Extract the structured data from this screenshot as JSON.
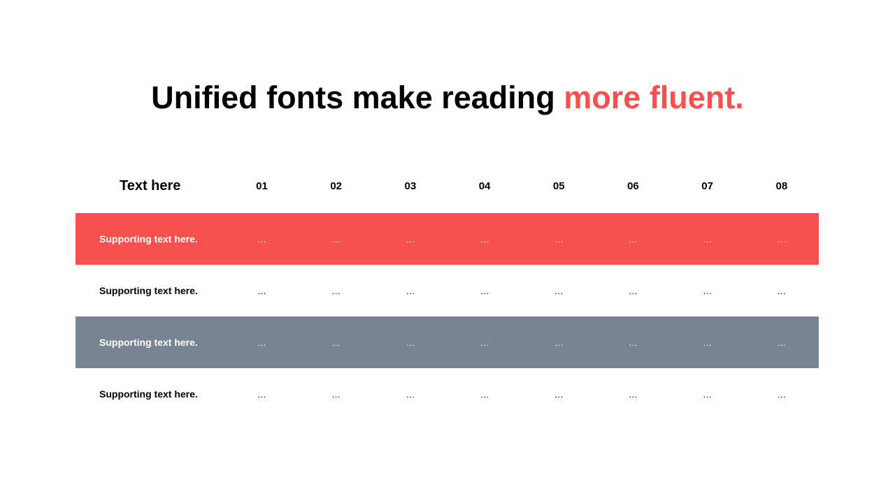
{
  "title": {
    "main": "Unified fonts make reading ",
    "accent": "more fluent."
  },
  "colors": {
    "accent": "#F84F4F",
    "gray_row": "#788494"
  },
  "table": {
    "header": [
      "Text here",
      "01",
      "02",
      "03",
      "04",
      "05",
      "06",
      "07",
      "08"
    ],
    "rows": [
      {
        "style": "red",
        "cells": [
          "Supporting  text here.",
          "…",
          "…",
          "…",
          "…",
          "…",
          "…",
          "…",
          "…"
        ]
      },
      {
        "style": "white",
        "cells": [
          "Supporting  text here.",
          "…",
          "…",
          "…",
          "…",
          "…",
          "…",
          "…",
          "…"
        ]
      },
      {
        "style": "gray",
        "cells": [
          "Supporting  text here.",
          "…",
          "…",
          "…",
          "…",
          "…",
          "…",
          "…",
          "…"
        ]
      },
      {
        "style": "white",
        "cells": [
          "Supporting  text here.",
          "…",
          "…",
          "…",
          "…",
          "…",
          "…",
          "…",
          "…"
        ]
      }
    ]
  }
}
